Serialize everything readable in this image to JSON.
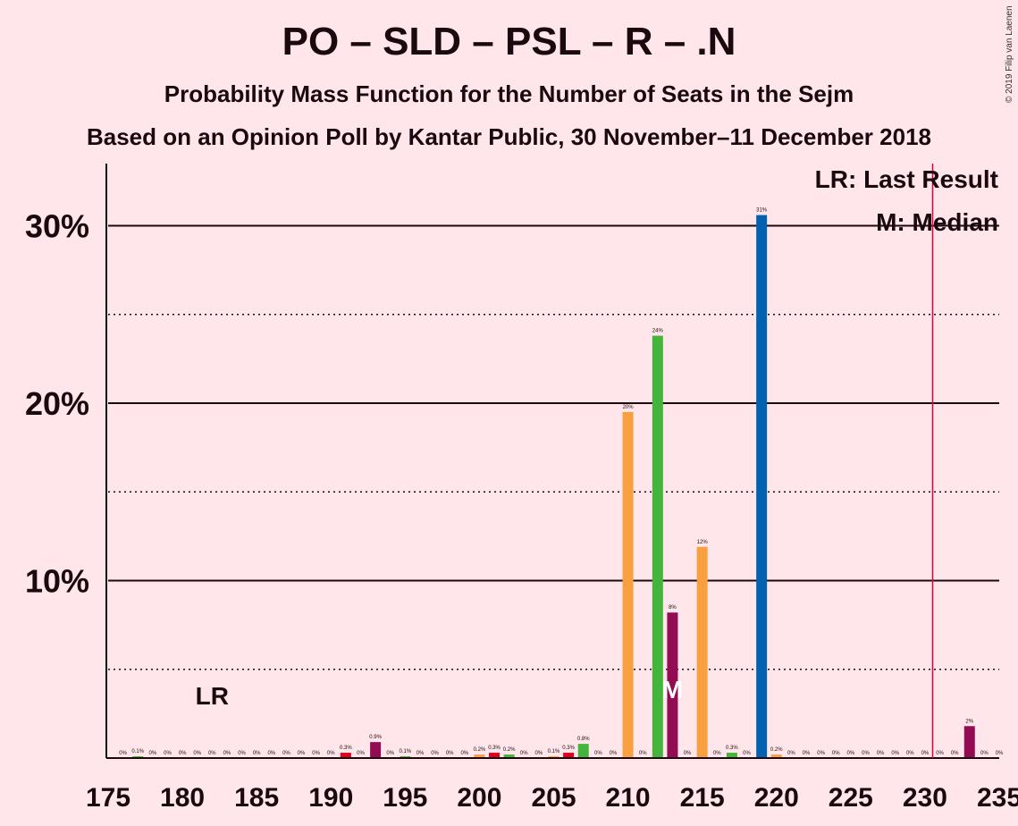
{
  "chart_data": {
    "type": "bar",
    "title": "PO – SLD – PSL – R – .N",
    "subtitle": "Probability Mass Function for the Number of Seats in the Sejm",
    "subtitle2": "Based on an Opinion Poll by Kantar Public, 30 November–11 December 2018",
    "copyright": "© 2019 Filip van Laenen",
    "xlim": [
      175,
      235
    ],
    "ylim": [
      0,
      33.5
    ],
    "x_ticks": [
      "175",
      "180",
      "185",
      "190",
      "195",
      "200",
      "205",
      "210",
      "215",
      "220",
      "225",
      "230",
      "235"
    ],
    "y_ticks": [
      {
        "value": 10,
        "label": "10%"
      },
      {
        "value": 20,
        "label": "20%"
      },
      {
        "value": 30,
        "label": "30%"
      }
    ],
    "dotted_gridlines": [
      5,
      15,
      25
    ],
    "last_result": {
      "seat": 182,
      "label": "LR"
    },
    "median": {
      "seat": 213,
      "label": "M"
    },
    "majority_line": 231,
    "legend": {
      "lr": "LR: Last Result",
      "m": "M: Median"
    },
    "colors": {
      "background": "#FFE6EA",
      "orange": "#F8A040",
      "green": "#44B43C",
      "purple": "#930C53",
      "blue": "#0362B0",
      "red": "#E1001C",
      "majority": "#E0003C"
    },
    "bars": [
      {
        "x": 176,
        "value": 0,
        "label": "0%",
        "color": "orange"
      },
      {
        "x": 177,
        "value": 0.1,
        "label": "0.1%",
        "color": "green"
      },
      {
        "x": 178,
        "value": 0,
        "label": "0%",
        "color": "orange"
      },
      {
        "x": 179,
        "value": 0,
        "label": "0%",
        "color": "orange"
      },
      {
        "x": 180,
        "value": 0,
        "label": "0%",
        "color": "orange"
      },
      {
        "x": 181,
        "value": 0,
        "label": "0%",
        "color": "orange"
      },
      {
        "x": 182,
        "value": 0,
        "label": "0%",
        "color": "orange"
      },
      {
        "x": 183,
        "value": 0,
        "label": "0%",
        "color": "orange"
      },
      {
        "x": 184,
        "value": 0,
        "label": "0%",
        "color": "orange"
      },
      {
        "x": 185,
        "value": 0,
        "label": "0%",
        "color": "orange"
      },
      {
        "x": 186,
        "value": 0,
        "label": "0%",
        "color": "orange"
      },
      {
        "x": 187,
        "value": 0,
        "label": "0%",
        "color": "orange"
      },
      {
        "x": 188,
        "value": 0,
        "label": "0%",
        "color": "orange"
      },
      {
        "x": 189,
        "value": 0,
        "label": "0%",
        "color": "orange"
      },
      {
        "x": 190,
        "value": 0,
        "label": "0%",
        "color": "orange"
      },
      {
        "x": 191,
        "value": 0.3,
        "label": "0.3%",
        "color": "red"
      },
      {
        "x": 192,
        "value": 0,
        "label": "0%",
        "color": "orange"
      },
      {
        "x": 193,
        "value": 0.9,
        "label": "0.9%",
        "color": "purple"
      },
      {
        "x": 194,
        "value": 0,
        "label": "0%",
        "color": "orange"
      },
      {
        "x": 195,
        "value": 0.1,
        "label": "0.1%",
        "color": "green"
      },
      {
        "x": 196,
        "value": 0,
        "label": "0%",
        "color": "orange"
      },
      {
        "x": 197,
        "value": 0,
        "label": "0%",
        "color": "orange"
      },
      {
        "x": 198,
        "value": 0,
        "label": "0%",
        "color": "orange"
      },
      {
        "x": 199,
        "value": 0,
        "label": "0%",
        "color": "orange"
      },
      {
        "x": 200,
        "value": 0.2,
        "label": "0.2%",
        "color": "orange"
      },
      {
        "x": 201,
        "value": 0.3,
        "label": "0.3%",
        "color": "red"
      },
      {
        "x": 202,
        "value": 0.2,
        "label": "0.2%",
        "color": "green"
      },
      {
        "x": 203,
        "value": 0,
        "label": "0%",
        "color": "orange"
      },
      {
        "x": 204,
        "value": 0,
        "label": "0%",
        "color": "orange"
      },
      {
        "x": 205,
        "value": 0.1,
        "label": "0.1%",
        "color": "orange"
      },
      {
        "x": 206,
        "value": 0.3,
        "label": "0.3%",
        "color": "red"
      },
      {
        "x": 207,
        "value": 0.8,
        "label": "0.8%",
        "color": "green"
      },
      {
        "x": 208,
        "value": 0,
        "label": "0%",
        "color": "orange"
      },
      {
        "x": 209,
        "value": 0,
        "label": "0%",
        "color": "orange"
      },
      {
        "x": 210,
        "value": 19.5,
        "label": "20%",
        "color": "orange"
      },
      {
        "x": 211,
        "value": 0,
        "label": "0%",
        "color": "orange"
      },
      {
        "x": 212,
        "value": 23.8,
        "label": "24%",
        "color": "green"
      },
      {
        "x": 213,
        "value": 8.2,
        "label": "8%",
        "color": "purple"
      },
      {
        "x": 214,
        "value": 0,
        "label": "0%",
        "color": "orange"
      },
      {
        "x": 215,
        "value": 11.9,
        "label": "12%",
        "color": "orange"
      },
      {
        "x": 216,
        "value": 0,
        "label": "0%",
        "color": "orange"
      },
      {
        "x": 217,
        "value": 0.3,
        "label": "0.3%",
        "color": "green"
      },
      {
        "x": 218,
        "value": 0,
        "label": "0%",
        "color": "orange"
      },
      {
        "x": 219,
        "value": 30.6,
        "label": "31%",
        "color": "blue"
      },
      {
        "x": 220,
        "value": 0.2,
        "label": "0.2%",
        "color": "orange"
      },
      {
        "x": 221,
        "value": 0,
        "label": "0%",
        "color": "orange"
      },
      {
        "x": 222,
        "value": 0,
        "label": "0%",
        "color": "orange"
      },
      {
        "x": 223,
        "value": 0,
        "label": "0%",
        "color": "orange"
      },
      {
        "x": 224,
        "value": 0,
        "label": "0%",
        "color": "orange"
      },
      {
        "x": 225,
        "value": 0,
        "label": "0%",
        "color": "orange"
      },
      {
        "x": 226,
        "value": 0,
        "label": "0%",
        "color": "orange"
      },
      {
        "x": 227,
        "value": 0,
        "label": "0%",
        "color": "orange"
      },
      {
        "x": 228,
        "value": 0,
        "label": "0%",
        "color": "orange"
      },
      {
        "x": 229,
        "value": 0,
        "label": "0%",
        "color": "orange"
      },
      {
        "x": 230,
        "value": 0,
        "label": "0%",
        "color": "orange"
      },
      {
        "x": 231,
        "value": 0,
        "label": "0%",
        "color": "orange"
      },
      {
        "x": 232,
        "value": 0,
        "label": "0%",
        "color": "orange"
      },
      {
        "x": 233,
        "value": 1.8,
        "label": "2%",
        "color": "purple"
      },
      {
        "x": 234,
        "value": 0,
        "label": "0%",
        "color": "orange"
      },
      {
        "x": 235,
        "value": 0,
        "label": "0%",
        "color": "orange"
      }
    ]
  }
}
